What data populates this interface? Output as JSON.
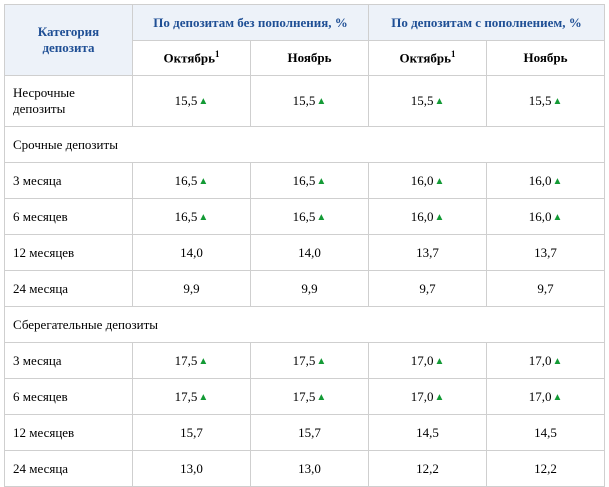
{
  "header": {
    "category": "Категория депозита",
    "group_no_topup": "По депозитам без пополнения, %",
    "group_topup": "По депозитам с пополнением, %",
    "october": "Октябрь",
    "october_footnote": "1",
    "november": "Ноябрь"
  },
  "indicator": {
    "up_icon": "triangle-up-icon",
    "up_glyph": "▲",
    "up_color": "#139a35"
  },
  "sections": {
    "term": "Срочные депозиты",
    "savings": "Сберегательные депозиты"
  },
  "rows": [
    {
      "category": "Несрочные депозиты",
      "values": [
        "15,5",
        "15,5",
        "15,5",
        "15,5"
      ],
      "up": true
    },
    {
      "category": "3 месяца",
      "values": [
        "16,5",
        "16,5",
        "16,0",
        "16,0"
      ],
      "up": true
    },
    {
      "category": "6 месяцев",
      "values": [
        "16,5",
        "16,5",
        "16,0",
        "16,0"
      ],
      "up": true
    },
    {
      "category": "12 месяцев",
      "values": [
        "14,0",
        "14,0",
        "13,7",
        "13,7"
      ],
      "up": false
    },
    {
      "category": "24 месяца",
      "values": [
        "9,9",
        "9,9",
        "9,7",
        "9,7"
      ],
      "up": false
    },
    {
      "category": "3 месяца",
      "values": [
        "17,5",
        "17,5",
        "17,0",
        "17,0"
      ],
      "up": true
    },
    {
      "category": "6 месяцев",
      "values": [
        "17,5",
        "17,5",
        "17,0",
        "17,0"
      ],
      "up": true
    },
    {
      "category": "12 месяцев",
      "values": [
        "15,7",
        "15,7",
        "14,5",
        "14,5"
      ],
      "up": false
    },
    {
      "category": "24 месяца",
      "values": [
        "13,0",
        "13,0",
        "12,2",
        "12,2"
      ],
      "up": false
    }
  ]
}
